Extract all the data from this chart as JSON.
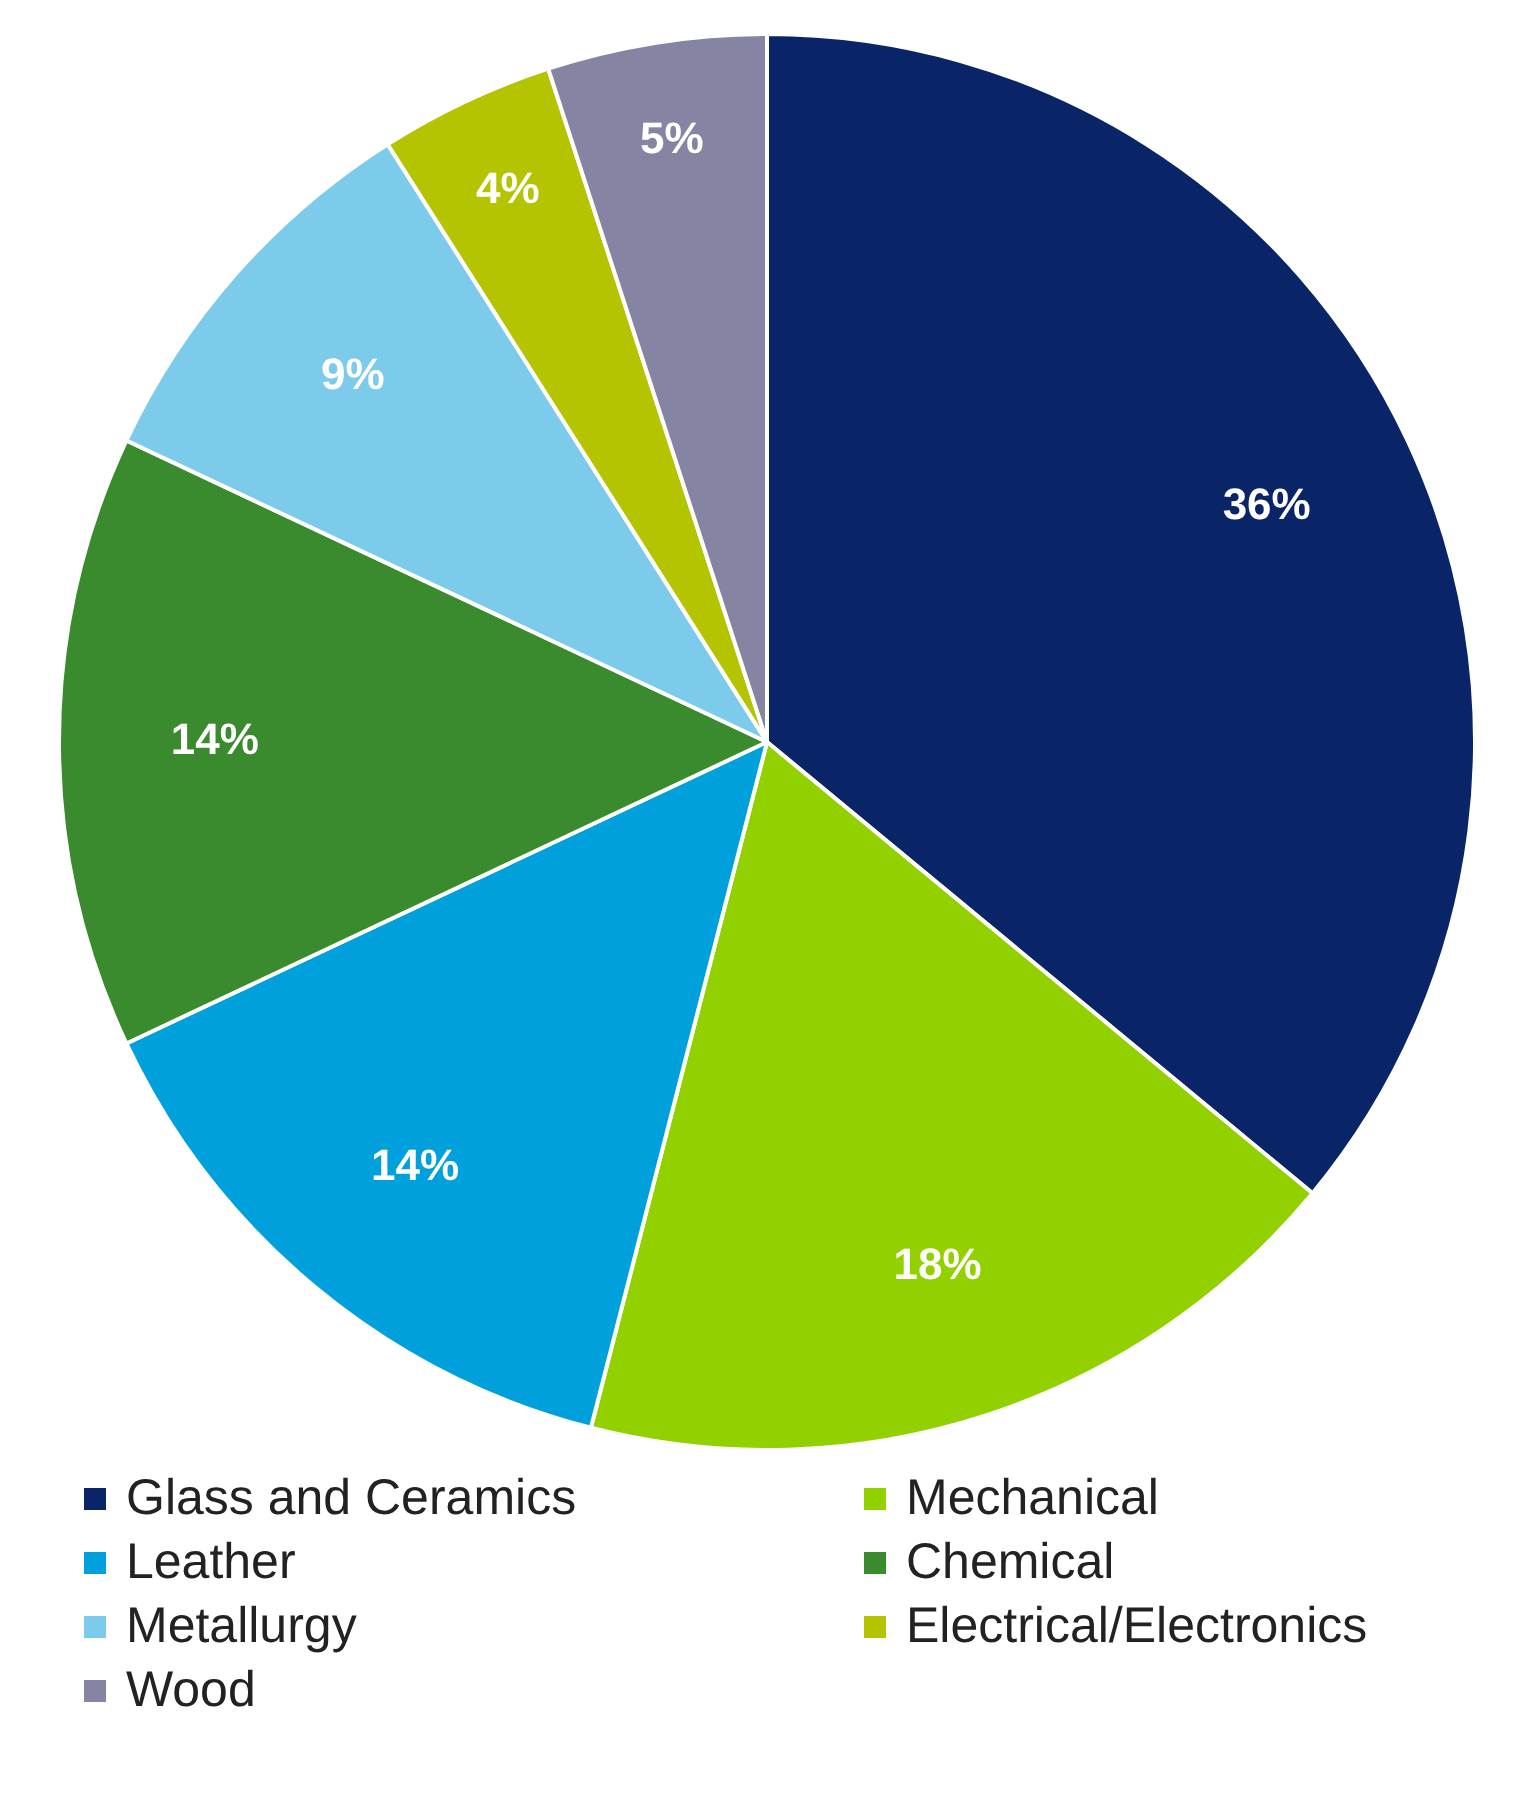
{
  "chart_data": {
    "type": "pie",
    "categories": [
      "Glass and Ceramics",
      "Mechanical",
      "Leather",
      "Chemical",
      "Metallurgy",
      "Electrical/Electronics",
      "Wood"
    ],
    "values": [
      36,
      18,
      14,
      14,
      9,
      4,
      5
    ],
    "value_labels": [
      "36%",
      "18%",
      "14%",
      "14%",
      "9%",
      "4%",
      "5%"
    ],
    "colors": [
      "#0a2468",
      "#92d000",
      "#00a0dc",
      "#3a8a2e",
      "#7ccbea",
      "#b5c400",
      "#8585a3"
    ],
    "legend": "bottom"
  }
}
